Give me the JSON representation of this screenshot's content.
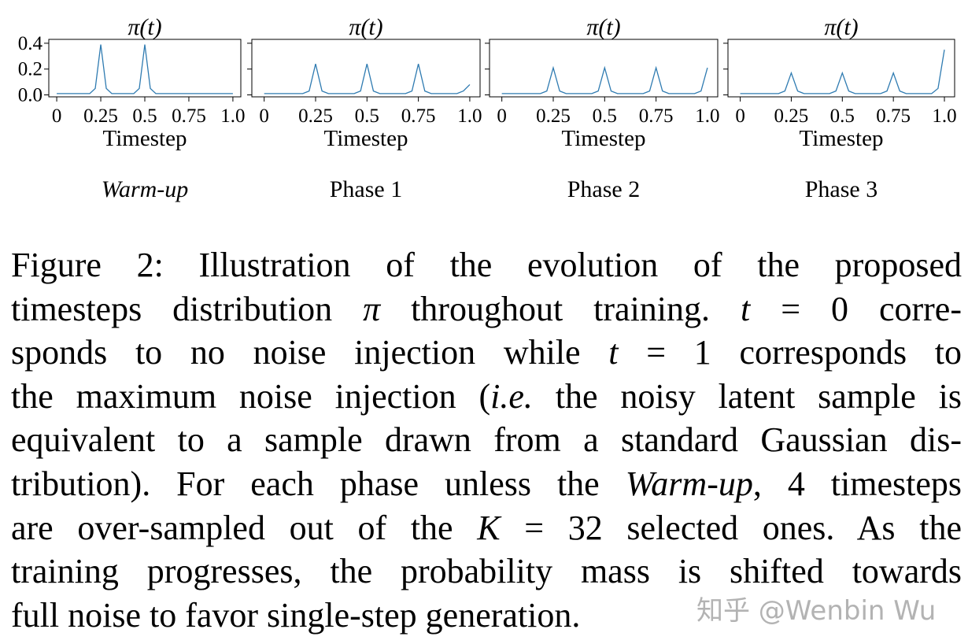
{
  "chart_data": [
    {
      "type": "line",
      "title": "π(t)",
      "xlabel": "Timestep",
      "panel_label": "Warm-up",
      "panel_label_italic": true,
      "color": "#2f7bb1",
      "x": [
        0,
        0.03125,
        0.0625,
        0.09375,
        0.125,
        0.15625,
        0.1875,
        0.21875,
        0.25,
        0.28125,
        0.3125,
        0.34375,
        0.375,
        0.40625,
        0.4375,
        0.46875,
        0.5,
        0.53125,
        0.5625,
        0.59375,
        0.625,
        0.65625,
        0.6875,
        0.71875,
        0.75,
        0.78125,
        0.8125,
        0.84375,
        0.875,
        0.90625,
        0.9375,
        0.96875,
        1
      ],
      "values": [
        0.01,
        0.01,
        0.01,
        0.01,
        0.01,
        0.01,
        0.01,
        0.05,
        0.39,
        0.05,
        0.01,
        0.01,
        0.01,
        0.01,
        0.01,
        0.05,
        0.39,
        0.05,
        0.01,
        0.01,
        0.01,
        0.01,
        0.01,
        0.01,
        0.01,
        0.01,
        0.01,
        0.01,
        0.01,
        0.01,
        0.01,
        0.01,
        0.01
      ],
      "xlim": [
        -0.045,
        1.045
      ],
      "ylim": [
        -0.015,
        0.43
      ],
      "xticks": [
        0,
        0.25,
        0.5,
        0.75,
        {
          "value": 1,
          "label": "1.0"
        }
      ],
      "yticks": [
        {
          "value": 0,
          "label": "0.0"
        },
        0.2,
        0.4
      ],
      "show_ytick_labels": true
    },
    {
      "type": "line",
      "title": "π(t)",
      "xlabel": "Timestep",
      "panel_label": "Phase 1",
      "panel_label_italic": false,
      "color": "#2f7bb1",
      "x": [
        0,
        0.03125,
        0.0625,
        0.09375,
        0.125,
        0.15625,
        0.1875,
        0.21875,
        0.25,
        0.28125,
        0.3125,
        0.34375,
        0.375,
        0.40625,
        0.4375,
        0.46875,
        0.5,
        0.53125,
        0.5625,
        0.59375,
        0.625,
        0.65625,
        0.6875,
        0.71875,
        0.75,
        0.78125,
        0.8125,
        0.84375,
        0.875,
        0.90625,
        0.9375,
        0.96875,
        1
      ],
      "values": [
        0.01,
        0.01,
        0.01,
        0.01,
        0.01,
        0.01,
        0.01,
        0.03,
        0.24,
        0.03,
        0.01,
        0.01,
        0.01,
        0.01,
        0.01,
        0.03,
        0.24,
        0.03,
        0.01,
        0.01,
        0.01,
        0.01,
        0.01,
        0.03,
        0.24,
        0.03,
        0.01,
        0.01,
        0.01,
        0.01,
        0.01,
        0.03,
        0.08
      ],
      "xlim": [
        -0.06,
        1.05
      ],
      "ylim": [
        -0.015,
        0.43
      ],
      "xticks": [
        0,
        0.25,
        0.5,
        0.75,
        {
          "value": 1,
          "label": "1.0"
        }
      ],
      "yticks": [
        0,
        0.2,
        0.4
      ],
      "show_ytick_labels": false
    },
    {
      "type": "line",
      "title": "π(t)",
      "xlabel": "Timestep",
      "panel_label": "Phase 2",
      "panel_label_italic": false,
      "color": "#2f7bb1",
      "x": [
        0,
        0.03125,
        0.0625,
        0.09375,
        0.125,
        0.15625,
        0.1875,
        0.21875,
        0.25,
        0.28125,
        0.3125,
        0.34375,
        0.375,
        0.40625,
        0.4375,
        0.46875,
        0.5,
        0.53125,
        0.5625,
        0.59375,
        0.625,
        0.65625,
        0.6875,
        0.71875,
        0.75,
        0.78125,
        0.8125,
        0.84375,
        0.875,
        0.90625,
        0.9375,
        0.96875,
        1
      ],
      "values": [
        0.01,
        0.01,
        0.01,
        0.01,
        0.01,
        0.01,
        0.01,
        0.03,
        0.21,
        0.03,
        0.01,
        0.01,
        0.01,
        0.01,
        0.01,
        0.03,
        0.21,
        0.03,
        0.01,
        0.01,
        0.01,
        0.01,
        0.01,
        0.03,
        0.21,
        0.03,
        0.01,
        0.01,
        0.01,
        0.01,
        0.01,
        0.03,
        0.21
      ],
      "xlim": [
        -0.06,
        1.05
      ],
      "ylim": [
        -0.015,
        0.43
      ],
      "xticks": [
        0,
        0.25,
        0.5,
        0.75,
        {
          "value": 1,
          "label": "1.0"
        }
      ],
      "yticks": [
        0,
        0.2,
        0.4
      ],
      "show_ytick_labels": false
    },
    {
      "type": "line",
      "title": "π(t)",
      "xlabel": "Timestep",
      "panel_label": "Phase 3",
      "panel_label_italic": false,
      "color": "#2f7bb1",
      "x": [
        0,
        0.03125,
        0.0625,
        0.09375,
        0.125,
        0.15625,
        0.1875,
        0.21875,
        0.25,
        0.28125,
        0.3125,
        0.34375,
        0.375,
        0.40625,
        0.4375,
        0.46875,
        0.5,
        0.53125,
        0.5625,
        0.59375,
        0.625,
        0.65625,
        0.6875,
        0.71875,
        0.75,
        0.78125,
        0.8125,
        0.84375,
        0.875,
        0.90625,
        0.9375,
        0.96875,
        1
      ],
      "values": [
        0.01,
        0.01,
        0.01,
        0.01,
        0.01,
        0.01,
        0.01,
        0.03,
        0.17,
        0.03,
        0.01,
        0.01,
        0.01,
        0.01,
        0.01,
        0.03,
        0.17,
        0.03,
        0.01,
        0.01,
        0.01,
        0.01,
        0.01,
        0.03,
        0.17,
        0.03,
        0.01,
        0.01,
        0.01,
        0.01,
        0.01,
        0.05,
        0.35
      ],
      "xlim": [
        -0.06,
        1.05
      ],
      "ylim": [
        -0.015,
        0.43
      ],
      "xticks": [
        0,
        0.25,
        0.5,
        0.75,
        {
          "value": 1,
          "label": "1.0"
        }
      ],
      "yticks": [
        0,
        0.2,
        0.4
      ],
      "show_ytick_labels": false
    }
  ],
  "caption": {
    "lines": [
      [
        {
          "text": "Figure 2: Illustration of the evolution of the proposed"
        }
      ],
      [
        {
          "text": "timesteps distribution "
        },
        {
          "text": "π",
          "italic": true
        },
        {
          "text": " throughout training. "
        },
        {
          "text": "t",
          "italic": true
        },
        {
          "text": " = 0 corre-"
        }
      ],
      [
        {
          "text": "sponds to no noise injection while "
        },
        {
          "text": "t",
          "italic": true
        },
        {
          "text": " = 1 corresponds to"
        }
      ],
      [
        {
          "text": "the maximum noise injection ("
        },
        {
          "text": "i.e.",
          "italic": true
        },
        {
          "text": " the noisy latent sample is"
        }
      ],
      [
        {
          "text": "equivalent to a sample drawn from a standard Gaussian dis-"
        }
      ],
      [
        {
          "text": "tribution). For each phase unless the "
        },
        {
          "text": "Warm-up",
          "italic": true
        },
        {
          "text": ", 4 timesteps"
        }
      ],
      [
        {
          "text": "are over-sampled out of the "
        },
        {
          "text": "K",
          "italic": true
        },
        {
          "text": " = 32 selected ones. As the"
        }
      ],
      [
        {
          "text": "training progresses, the probability mass is shifted towards"
        }
      ],
      [
        {
          "text": "full noise to favor single-step generation."
        }
      ]
    ]
  },
  "watermark": "知乎 @Wenbin Wu"
}
